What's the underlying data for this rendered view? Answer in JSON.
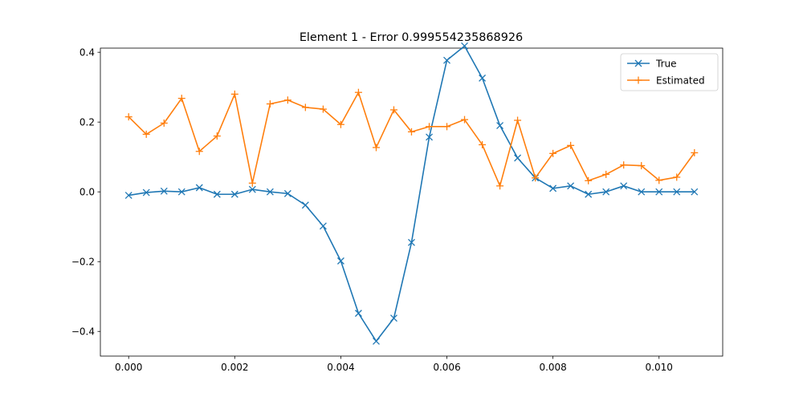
{
  "chart_data": {
    "type": "line",
    "title": "Element 1 - Error 0.999554235868926",
    "xlabel": "",
    "ylabel": "",
    "xlim": [
      -0.000533,
      0.0112
    ],
    "ylim": [
      -0.4707,
      0.4119
    ],
    "xticks": [
      0.0,
      0.002,
      0.004,
      0.006,
      0.008,
      0.01
    ],
    "xtick_labels": [
      "0.000",
      "0.002",
      "0.004",
      "0.006",
      "0.008",
      "0.010"
    ],
    "yticks": [
      -0.4,
      -0.2,
      0.0,
      0.2,
      0.4
    ],
    "ytick_labels": [
      "−0.4",
      "−0.2",
      "0.0",
      "0.2",
      "0.4"
    ],
    "grid": false,
    "legend_position": "top-right",
    "x": [
      0.0,
      0.000333,
      0.000667,
      0.001,
      0.001333,
      0.001667,
      0.002,
      0.002333,
      0.002667,
      0.003,
      0.003333,
      0.003667,
      0.004,
      0.004333,
      0.004667,
      0.005,
      0.005333,
      0.005667,
      0.006,
      0.006333,
      0.006667,
      0.007,
      0.007333,
      0.007667,
      0.008,
      0.008333,
      0.008667,
      0.009,
      0.009333,
      0.009667,
      0.01,
      0.010333,
      0.010667
    ],
    "series": [
      {
        "name": "True",
        "color": "#1f77b4",
        "marker": "x",
        "values": [
          -0.01,
          -0.002,
          0.002,
          0.0,
          0.012,
          -0.007,
          -0.007,
          0.007,
          0.0,
          -0.005,
          -0.038,
          -0.098,
          -0.198,
          -0.348,
          -0.428,
          -0.362,
          -0.145,
          0.157,
          0.377,
          0.418,
          0.326,
          0.19,
          0.097,
          0.04,
          0.01,
          0.017,
          -0.007,
          0.0,
          0.017,
          0.0,
          0.0,
          0.0,
          0.0
        ]
      },
      {
        "name": "Estimated",
        "color": "#ff7f0e",
        "marker": "+",
        "values": [
          0.215,
          0.165,
          0.197,
          0.268,
          0.116,
          0.16,
          0.28,
          0.025,
          0.252,
          0.263,
          0.242,
          0.237,
          0.193,
          0.285,
          0.127,
          0.235,
          0.172,
          0.187,
          0.187,
          0.207,
          0.135,
          0.017,
          0.205,
          0.04,
          0.11,
          0.133,
          0.032,
          0.05,
          0.077,
          0.075,
          0.033,
          0.042,
          0.112
        ]
      }
    ]
  }
}
